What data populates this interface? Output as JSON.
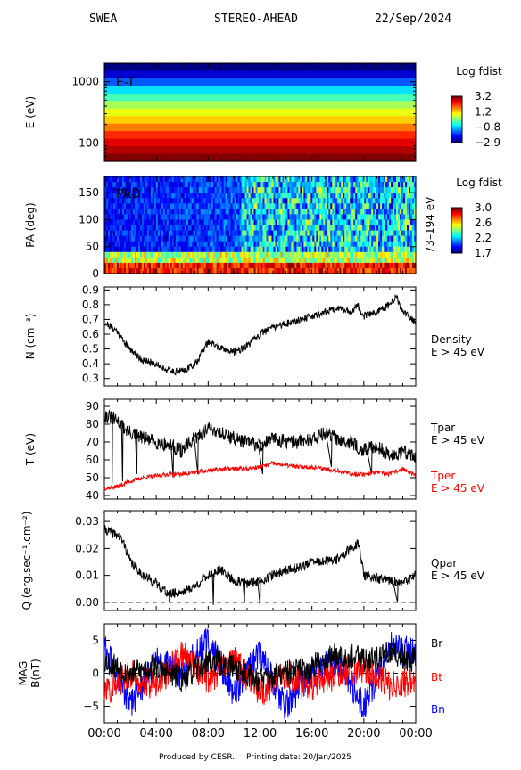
{
  "header": {
    "instrument": "SWEA",
    "mission": "STEREO-AHEAD",
    "date": "22/Sep/2024"
  },
  "footer": {
    "produced": "Produced by CESR.",
    "printing": "Printing date: 20/Jan/2025"
  },
  "colors": {
    "tpar": "#000000",
    "tper": "#ff0000",
    "br": "#000000",
    "bt": "#ff0000",
    "bn": "#0000ff"
  },
  "chart_data": [
    {
      "type": "heatmap",
      "panel": "energy",
      "inner_label": "E-T",
      "ylabel": "E (eV)",
      "y_scale": "log",
      "yticks": [
        "1000",
        "100"
      ],
      "ylim": [
        50,
        2000
      ],
      "x_time_range": [
        "00:00",
        "24:00"
      ],
      "energy_bins_desc": [
        "colorband rows from high energy (low fdist) to low energy (high fdist)"
      ],
      "row_values": [
        -2.9,
        -2.4,
        -1.6,
        -0.8,
        -0.2,
        0.4,
        0.8,
        1.2,
        1.7,
        2.2,
        2.6,
        2.9,
        3.2
      ],
      "colorbar": {
        "title": "Log fdist",
        "ticks": [
          "3.2",
          "1.2",
          "−0.8",
          "−2.9"
        ],
        "range": [
          -2.9,
          3.2
        ]
      }
    },
    {
      "type": "heatmap",
      "panel": "pad",
      "inner_label": "PAD",
      "ylabel": "PA (deg)",
      "side_label": "73–194 eV",
      "yticks": [
        "150",
        "100",
        "50",
        "0"
      ],
      "ylim": [
        0,
        180
      ],
      "colorbar": {
        "title": "Log fdist",
        "ticks": [
          "3.0",
          "2.6",
          "2.2",
          "1.7"
        ],
        "range": [
          1.7,
          3.0
        ]
      },
      "description_values": {
        "low_pa_level": 2.8,
        "high_pa_early": 1.8,
        "high_pa_late": 2.2
      }
    },
    {
      "type": "line",
      "panel": "density",
      "ylabel": "N (cm⁻³)",
      "series_label": [
        "Density",
        "E > 45 eV"
      ],
      "ylim": [
        0.25,
        0.92
      ],
      "yticks": [
        "0.9",
        "0.8",
        "0.7",
        "0.6",
        "0.5",
        "0.4",
        "0.3"
      ],
      "x": [
        0,
        1,
        1.5,
        2,
        3,
        4,
        5,
        6,
        7,
        8,
        9,
        10,
        11,
        12,
        13,
        14,
        15,
        16,
        17,
        18,
        19,
        19.5,
        20,
        21,
        22,
        22.5,
        23,
        24
      ],
      "values": [
        0.68,
        0.62,
        0.55,
        0.5,
        0.42,
        0.4,
        0.35,
        0.35,
        0.4,
        0.55,
        0.5,
        0.48,
        0.52,
        0.6,
        0.65,
        0.67,
        0.7,
        0.72,
        0.75,
        0.78,
        0.75,
        0.8,
        0.72,
        0.75,
        0.8,
        0.85,
        0.75,
        0.68
      ],
      "noise": 0.025
    },
    {
      "type": "line",
      "panel": "temperature",
      "ylabel": "T (eV)",
      "ylim": [
        38,
        94
      ],
      "yticks": [
        "90",
        "80",
        "70",
        "60",
        "50",
        "40"
      ],
      "series": [
        {
          "name": "Tpar",
          "label_lines": [
            "Tpar",
            "E > 45 eV"
          ],
          "x": [
            0,
            1,
            1.5,
            2,
            3,
            4,
            5,
            6,
            7,
            8,
            9,
            10,
            11,
            12,
            13,
            14,
            15,
            16,
            17,
            18,
            19,
            20,
            21,
            22,
            23,
            24
          ],
          "values": [
            85,
            82,
            78,
            75,
            72,
            70,
            68,
            65,
            72,
            78,
            75,
            72,
            70,
            68,
            72,
            70,
            70,
            72,
            75,
            72,
            70,
            65,
            68,
            62,
            65,
            62
          ],
          "noise": 4,
          "dips": [
            [
              0.6,
              47
            ],
            [
              1.4,
              48
            ],
            [
              2.5,
              52
            ],
            [
              5.3,
              50
            ],
            [
              7.2,
              52
            ],
            [
              12.2,
              52
            ],
            [
              17.5,
              56
            ],
            [
              20.6,
              52
            ]
          ]
        },
        {
          "name": "Tper",
          "label_lines": [
            "Tper",
            "E > 45 eV"
          ],
          "x": [
            0,
            1,
            2,
            3,
            4,
            5,
            6,
            7,
            8,
            9,
            10,
            11,
            12,
            13,
            14,
            15,
            16,
            17,
            18,
            19,
            20,
            21,
            22,
            23,
            24
          ],
          "values": [
            44,
            45,
            48,
            50,
            51,
            52,
            52,
            53,
            54,
            55,
            55,
            55,
            56,
            58,
            57,
            56,
            56,
            55,
            54,
            52,
            52,
            53,
            52,
            55,
            51
          ],
          "noise": 1.2
        }
      ]
    },
    {
      "type": "line",
      "panel": "heat_flux",
      "ylabel": "Q (erg.sec⁻¹.cm⁻²)",
      "series_label": [
        "Qpar",
        "E > 45 eV"
      ],
      "ylim": [
        -0.003,
        0.034
      ],
      "yticks": [
        "0.03",
        "0.02",
        "0.01",
        "0.00"
      ],
      "zero_line": 0,
      "x": [
        0,
        1,
        1.5,
        2,
        3,
        4,
        5,
        6,
        7,
        8,
        9,
        10,
        11,
        12,
        13,
        14,
        15,
        16,
        17,
        18,
        19,
        19.6,
        20,
        21,
        22,
        23,
        24
      ],
      "values": [
        0.027,
        0.025,
        0.022,
        0.015,
        0.01,
        0.007,
        0.003,
        0.004,
        0.006,
        0.01,
        0.012,
        0.008,
        0.007,
        0.008,
        0.01,
        0.012,
        0.013,
        0.015,
        0.015,
        0.016,
        0.02,
        0.022,
        0.01,
        0.009,
        0.008,
        0.007,
        0.01
      ],
      "noise": 0.0018,
      "dips": [
        [
          5.0,
          0.0
        ],
        [
          8.4,
          -0.001
        ],
        [
          10.8,
          0.0
        ],
        [
          12.0,
          -0.001
        ],
        [
          22.6,
          0.0
        ]
      ]
    },
    {
      "type": "line",
      "panel": "mag",
      "ylabel": "MAG B(nT)",
      "ylim": [
        -7.5,
        7.5
      ],
      "yticks": [
        "5",
        "0",
        "−5"
      ],
      "xticks": [
        "00:00",
        "04:00",
        "08:00",
        "12:00",
        "16:00",
        "20:00",
        "00:00"
      ],
      "xlim": [
        0,
        24
      ],
      "zero_line": 0,
      "series": [
        {
          "name": "Br",
          "x": [
            0,
            2,
            4,
            6,
            8,
            10,
            12,
            14,
            16,
            18,
            20,
            22,
            24
          ],
          "values": [
            2,
            0,
            1,
            -1,
            2,
            1,
            -1,
            0,
            1,
            3,
            2,
            3,
            2
          ],
          "noise": 2.0
        },
        {
          "name": "Bt",
          "x": [
            0,
            2,
            4,
            6,
            8,
            10,
            12,
            14,
            16,
            18,
            20,
            22,
            24
          ],
          "values": [
            -3,
            0,
            -2,
            3,
            -1,
            2,
            -3,
            0,
            -2,
            0,
            1,
            -2,
            -1
          ],
          "noise": 2.3
        },
        {
          "name": "Bn",
          "x": [
            0,
            2,
            4,
            6,
            8,
            10,
            12,
            14,
            16,
            18,
            20,
            22,
            24
          ],
          "values": [
            4,
            -5,
            2,
            0,
            5,
            -3,
            3,
            -5,
            0,
            2,
            -5,
            4,
            3
          ],
          "noise": 2.4
        }
      ]
    }
  ]
}
